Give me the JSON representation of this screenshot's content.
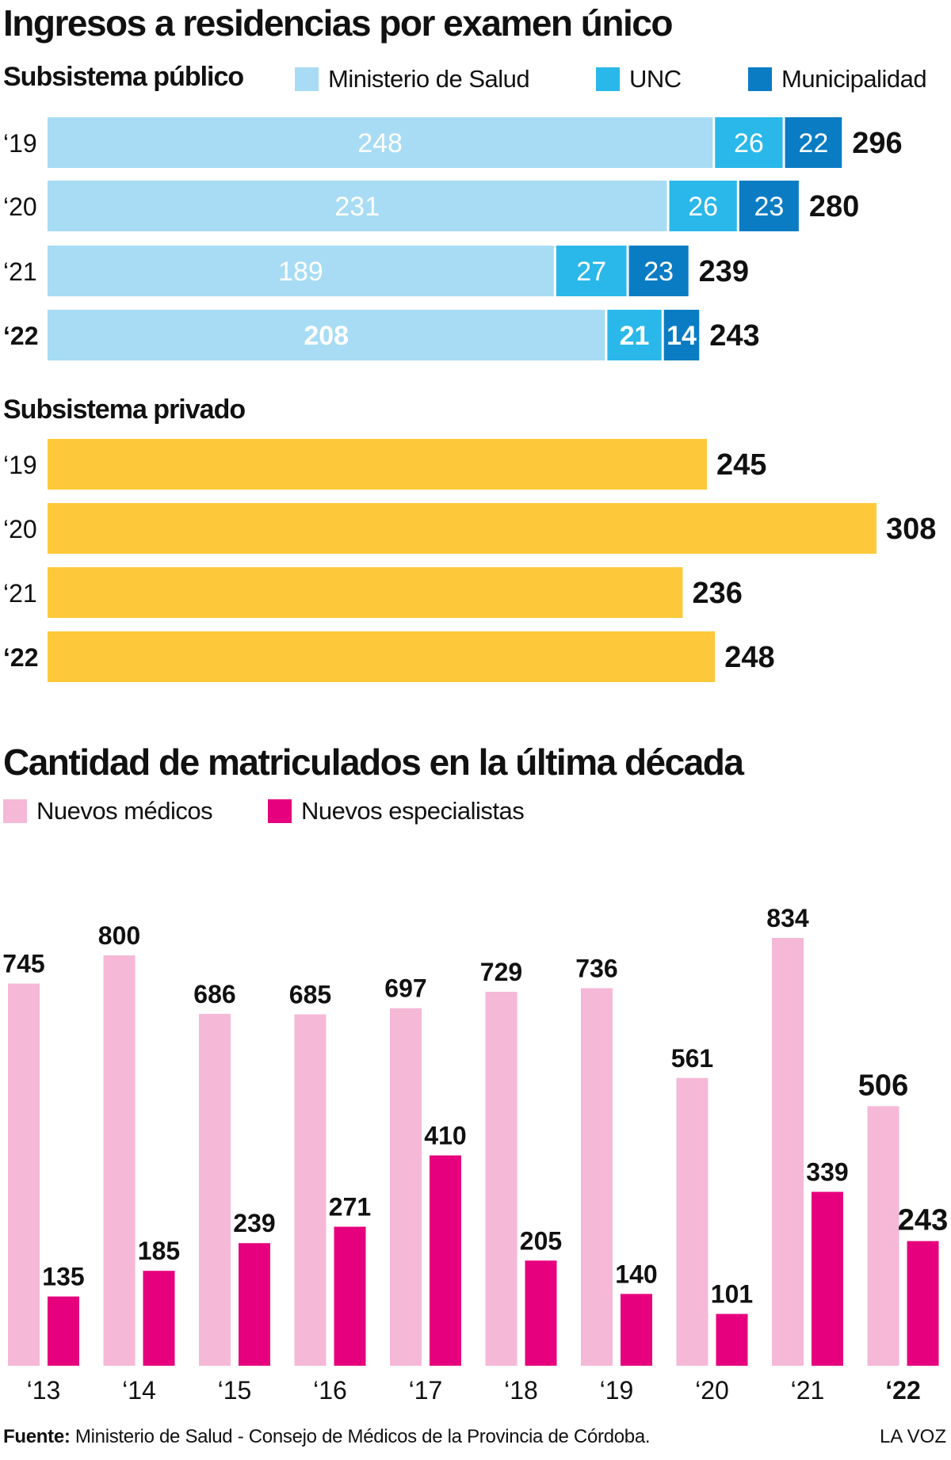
{
  "title": "Ingresos a residencias por examen único",
  "colors": {
    "ministerio": "#a8dcf4",
    "unc": "#2ab8ea",
    "municipalidad": "#0a7cc4",
    "privado": "#fdc93a",
    "nuevos_medicos": "#f5b8d6",
    "nuevos_especialistas": "#e6007e"
  },
  "publico": {
    "title": "Subsistema público",
    "legend": [
      "Ministerio de Salud",
      "UNC",
      "Municipalidad"
    ]
  },
  "privado": {
    "title": "Subsistema privado"
  },
  "matriculados": {
    "title": "Cantidad de matriculados en la última década",
    "legend": [
      "Nuevos médicos",
      "Nuevos especialistas"
    ]
  },
  "footer": {
    "source_label": "Fuente:",
    "source_text": " Ministerio de Salud - Consejo de Médicos de la Provincia de Córdoba.",
    "brand": "LA VOZ"
  },
  "chart_data": [
    {
      "type": "bar",
      "orientation": "horizontal",
      "stacked": true,
      "title": "Subsistema público",
      "categories": [
        "‘19",
        "‘20",
        "‘21",
        "‘22"
      ],
      "series": [
        {
          "name": "Ministerio de Salud",
          "values": [
            248,
            231,
            189,
            208
          ]
        },
        {
          "name": "UNC",
          "values": [
            26,
            26,
            27,
            21
          ]
        },
        {
          "name": "Municipalidad",
          "values": [
            22,
            23,
            23,
            14
          ]
        }
      ],
      "totals": [
        296,
        280,
        239,
        243
      ],
      "legend": "top-right"
    },
    {
      "type": "bar",
      "orientation": "horizontal",
      "title": "Subsistema privado",
      "categories": [
        "‘19",
        "‘20",
        "‘21",
        "‘22"
      ],
      "values": [
        245,
        308,
        236,
        248
      ]
    },
    {
      "type": "bar",
      "title": "Cantidad de matriculados en la última década",
      "categories": [
        "‘13",
        "‘14",
        "‘15",
        "‘16",
        "‘17",
        "‘18",
        "‘19",
        "‘20",
        "‘21",
        "‘22"
      ],
      "series": [
        {
          "name": "Nuevos médicos",
          "values": [
            745,
            800,
            686,
            685,
            697,
            729,
            736,
            561,
            834,
            506
          ]
        },
        {
          "name": "Nuevos especialistas",
          "values": [
            135,
            185,
            239,
            271,
            410,
            205,
            140,
            101,
            339,
            243
          ]
        }
      ],
      "ylim": [
        0,
        834
      ],
      "legend": "top-left"
    }
  ]
}
